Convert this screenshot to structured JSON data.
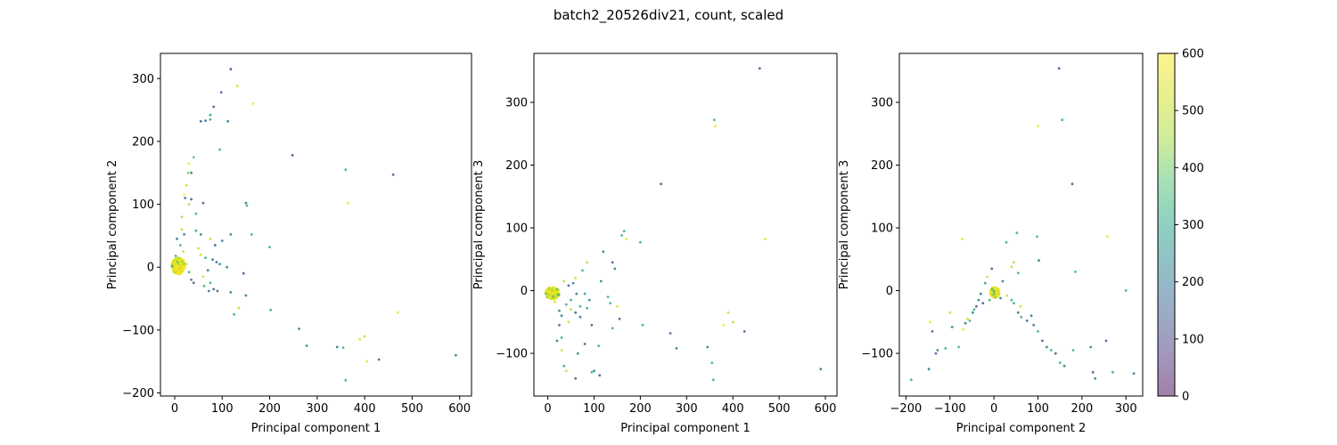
{
  "figure_title": "batch2_20526div21, count, scaled",
  "colorbar": {
    "ticks": [
      0,
      100,
      200,
      300,
      400,
      500,
      600
    ],
    "range": [
      0,
      600
    ],
    "colormap": "viridis",
    "alpha": 0.5
  },
  "chart_data": [
    {
      "type": "scatter",
      "title": "",
      "xlabel": "Principal component 1",
      "ylabel": "Principal component 2",
      "xlim": [
        -30,
        625
      ],
      "ylim": [
        -205,
        340
      ],
      "xticks": [
        0,
        100,
        200,
        300,
        400,
        500,
        600
      ],
      "yticks": [
        -200,
        -100,
        0,
        100,
        200,
        300
      ],
      "grid": false,
      "dense_cluster": {
        "cx": 8,
        "cy": 2,
        "rx": 14,
        "ry": 13,
        "color_value": 560
      },
      "points": [
        [
          118,
          315,
          100
        ],
        [
          132,
          288,
          520
        ],
        [
          165,
          260,
          560
        ],
        [
          98,
          278,
          150
        ],
        [
          112,
          232,
          200
        ],
        [
          82,
          255,
          120
        ],
        [
          75,
          242,
          300
        ],
        [
          75,
          235,
          330
        ],
        [
          65,
          233,
          180
        ],
        [
          55,
          232,
          150
        ],
        [
          248,
          178,
          120
        ],
        [
          95,
          187,
          330
        ],
        [
          40,
          175,
          380
        ],
        [
          30,
          165,
          560
        ],
        [
          28,
          150,
          420
        ],
        [
          35,
          150,
          200
        ],
        [
          25,
          130,
          500
        ],
        [
          20,
          115,
          600
        ],
        [
          22,
          110,
          200
        ],
        [
          35,
          108,
          150
        ],
        [
          30,
          100,
          450
        ],
        [
          15,
          80,
          480
        ],
        [
          45,
          85,
          330
        ],
        [
          60,
          102,
          150
        ],
        [
          150,
          102,
          200
        ],
        [
          152,
          98,
          350
        ],
        [
          360,
          155,
          330
        ],
        [
          365,
          102,
          560
        ],
        [
          460,
          147,
          150
        ],
        [
          15,
          60,
          520
        ],
        [
          20,
          52,
          200
        ],
        [
          45,
          58,
          300
        ],
        [
          55,
          52,
          200
        ],
        [
          75,
          45,
          500
        ],
        [
          85,
          35,
          120
        ],
        [
          100,
          42,
          200
        ],
        [
          118,
          52,
          200
        ],
        [
          162,
          52,
          330
        ],
        [
          200,
          32,
          330
        ],
        [
          65,
          15,
          330
        ],
        [
          80,
          12,
          200
        ],
        [
          88,
          8,
          150
        ],
        [
          95,
          5,
          300
        ],
        [
          110,
          0,
          200
        ],
        [
          70,
          -5,
          200
        ],
        [
          60,
          -15,
          520
        ],
        [
          75,
          -25,
          350
        ],
        [
          82,
          -35,
          150
        ],
        [
          72,
          -38,
          200
        ],
        [
          90,
          -38,
          150
        ],
        [
          125,
          -75,
          330
        ],
        [
          135,
          -65,
          500
        ],
        [
          150,
          -45,
          200
        ],
        [
          145,
          -10,
          150
        ],
        [
          202,
          -68,
          330
        ],
        [
          262,
          -98,
          200
        ],
        [
          278,
          -125,
          200
        ],
        [
          342,
          -127,
          180
        ],
        [
          355,
          -128,
          330
        ],
        [
          360,
          -180,
          330
        ],
        [
          390,
          -115,
          520
        ],
        [
          400,
          -110,
          480
        ],
        [
          405,
          -150,
          560
        ],
        [
          430,
          -147,
          150
        ],
        [
          470,
          -72,
          560
        ],
        [
          592,
          -140,
          200
        ],
        [
          55,
          20,
          520
        ],
        [
          50,
          30,
          480
        ],
        [
          35,
          -20,
          200
        ],
        [
          30,
          -8,
          330
        ],
        [
          25,
          5,
          520
        ],
        [
          18,
          25,
          480
        ],
        [
          12,
          35,
          330
        ],
        [
          5,
          45,
          200
        ],
        [
          40,
          -25,
          150
        ],
        [
          62,
          -30,
          330
        ],
        [
          118,
          -40,
          200
        ],
        [
          2,
          18,
          330
        ],
        [
          -3,
          10,
          520
        ]
      ]
    },
    {
      "type": "scatter",
      "title": "",
      "xlabel": "Principal component 1",
      "ylabel": "Principal component 3",
      "xlim": [
        -30,
        625
      ],
      "ylim": [
        -168,
        378
      ],
      "xticks": [
        0,
        100,
        200,
        300,
        400,
        500,
        600
      ],
      "yticks": [
        -100,
        0,
        100,
        200,
        300
      ],
      "grid": false,
      "dense_cluster": {
        "cx": 10,
        "cy": -4,
        "rx": 15,
        "ry": 9,
        "color_value": 560
      },
      "points": [
        [
          458,
          354,
          120
        ],
        [
          360,
          272,
          330
        ],
        [
          362,
          262,
          560
        ],
        [
          245,
          170,
          150
        ],
        [
          165,
          95,
          330
        ],
        [
          160,
          88,
          330
        ],
        [
          170,
          82,
          560
        ],
        [
          200,
          77,
          330
        ],
        [
          470,
          82,
          560
        ],
        [
          120,
          62,
          200
        ],
        [
          140,
          45,
          150
        ],
        [
          145,
          35,
          200
        ],
        [
          85,
          45,
          480
        ],
        [
          75,
          32,
          330
        ],
        [
          60,
          20,
          500
        ],
        [
          55,
          12,
          200
        ],
        [
          45,
          8,
          150
        ],
        [
          115,
          15,
          200
        ],
        [
          130,
          -10,
          330
        ],
        [
          135,
          -20,
          330
        ],
        [
          150,
          -25,
          560
        ],
        [
          90,
          -15,
          200
        ],
        [
          80,
          -5,
          300
        ],
        [
          70,
          -25,
          330
        ],
        [
          60,
          -35,
          150
        ],
        [
          50,
          -30,
          480
        ],
        [
          40,
          -22,
          330
        ],
        [
          30,
          -40,
          200
        ],
        [
          25,
          -55,
          150
        ],
        [
          45,
          -50,
          520
        ],
        [
          70,
          -42,
          200
        ],
        [
          155,
          -45,
          150
        ],
        [
          140,
          -60,
          330
        ],
        [
          205,
          -55,
          330
        ],
        [
          110,
          -88,
          330
        ],
        [
          80,
          -85,
          150
        ],
        [
          65,
          -100,
          200
        ],
        [
          30,
          -95,
          520
        ],
        [
          35,
          -120,
          330
        ],
        [
          40,
          -128,
          520
        ],
        [
          60,
          -140,
          150
        ],
        [
          95,
          -130,
          330
        ],
        [
          100,
          -128,
          200
        ],
        [
          112,
          -135,
          150
        ],
        [
          30,
          -75,
          330
        ],
        [
          20,
          -80,
          200
        ],
        [
          265,
          -68,
          150
        ],
        [
          278,
          -92,
          200
        ],
        [
          345,
          -90,
          200
        ],
        [
          355,
          -115,
          330
        ],
        [
          358,
          -142,
          330
        ],
        [
          380,
          -55,
          560
        ],
        [
          390,
          -35,
          520
        ],
        [
          400,
          -50,
          480
        ],
        [
          425,
          -65,
          150
        ],
        [
          590,
          -125,
          200
        ],
        [
          25,
          -32,
          200
        ],
        [
          50,
          -15,
          330
        ],
        [
          15,
          -18,
          520
        ],
        [
          35,
          15,
          480
        ],
        [
          62,
          -5,
          200
        ],
        [
          85,
          -28,
          330
        ],
        [
          95,
          -55,
          150
        ]
      ]
    },
    {
      "type": "scatter",
      "title": "",
      "xlabel": "Principal component 2",
      "ylabel": "Principal component 3",
      "xlim": [
        -215,
        338
      ],
      "ylim": [
        -168,
        378
      ],
      "xticks": [
        -200,
        -100,
        0,
        100,
        200,
        300
      ],
      "yticks": [
        -100,
        0,
        100,
        200,
        300
      ],
      "grid": false,
      "dense_cluster": {
        "cx": 2,
        "cy": -3,
        "rx": 10,
        "ry": 8,
        "color_value": 560
      },
      "points": [
        [
          148,
          354,
          120
        ],
        [
          100,
          262,
          560
        ],
        [
          155,
          272,
          330
        ],
        [
          178,
          170,
          150
        ],
        [
          -72,
          82,
          560
        ],
        [
          258,
          86,
          560
        ],
        [
          52,
          92,
          330
        ],
        [
          98,
          86,
          330
        ],
        [
          28,
          77,
          330
        ],
        [
          102,
          48,
          200
        ],
        [
          185,
          30,
          330
        ],
        [
          -5,
          35,
          150
        ],
        [
          40,
          38,
          500
        ],
        [
          55,
          28,
          330
        ],
        [
          45,
          45,
          480
        ],
        [
          20,
          15,
          200
        ],
        [
          -15,
          22,
          500
        ],
        [
          -20,
          12,
          300
        ],
        [
          -30,
          -5,
          200
        ],
        [
          -35,
          -15,
          200
        ],
        [
          -40,
          -25,
          150
        ],
        [
          -48,
          -35,
          200
        ],
        [
          -55,
          -48,
          330
        ],
        [
          -65,
          -52,
          200
        ],
        [
          -70,
          -62,
          560
        ],
        [
          -95,
          -58,
          200
        ],
        [
          -100,
          -35,
          520
        ],
        [
          -110,
          -92,
          330
        ],
        [
          -128,
          -95,
          200
        ],
        [
          -132,
          -100,
          150
        ],
        [
          -140,
          -65,
          150
        ],
        [
          -145,
          -50,
          560
        ],
        [
          -148,
          -125,
          200
        ],
        [
          -188,
          -142,
          330
        ],
        [
          -25,
          -20,
          150
        ],
        [
          -10,
          -15,
          330
        ],
        [
          15,
          -12,
          200
        ],
        [
          30,
          -8,
          500
        ],
        [
          45,
          -20,
          330
        ],
        [
          55,
          -35,
          200
        ],
        [
          62,
          -42,
          330
        ],
        [
          75,
          -48,
          150
        ],
        [
          90,
          -55,
          200
        ],
        [
          100,
          -65,
          330
        ],
        [
          110,
          -80,
          150
        ],
        [
          120,
          -90,
          200
        ],
        [
          130,
          -95,
          330
        ],
        [
          140,
          -100,
          150
        ],
        [
          150,
          -115,
          330
        ],
        [
          160,
          -120,
          200
        ],
        [
          180,
          -95,
          330
        ],
        [
          220,
          -90,
          200
        ],
        [
          225,
          -130,
          150
        ],
        [
          230,
          -140,
          200
        ],
        [
          255,
          -80,
          150
        ],
        [
          270,
          -130,
          330
        ],
        [
          300,
          0,
          330
        ],
        [
          318,
          -132,
          200
        ],
        [
          -80,
          -90,
          330
        ],
        [
          -60,
          -45,
          520
        ],
        [
          -45,
          -30,
          330
        ],
        [
          40,
          -15,
          330
        ],
        [
          85,
          -40,
          200
        ],
        [
          60,
          -25,
          520
        ]
      ]
    }
  ]
}
